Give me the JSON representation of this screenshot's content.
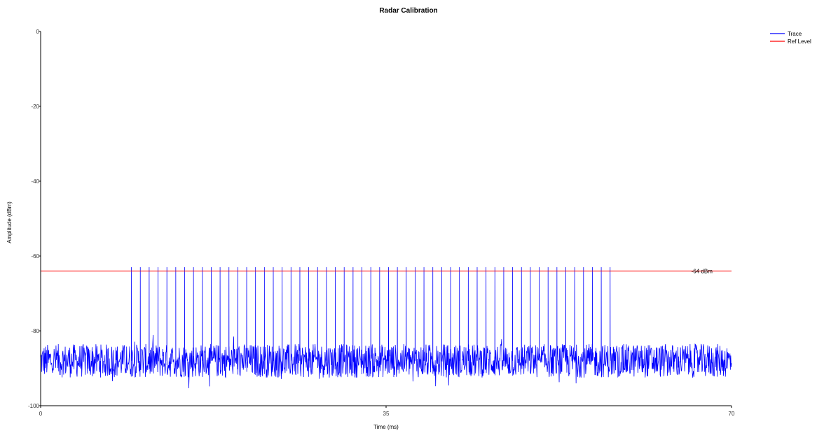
{
  "chart_data": {
    "type": "line",
    "title": "Radar Calibration",
    "xlabel": "Time (ms)",
    "ylabel": "Amplitude (dBm)",
    "xlim": [
      0,
      70
    ],
    "ylim": [
      -100,
      0
    ],
    "x_ticks": [
      "0",
      "35",
      "70"
    ],
    "y_ticks": [
      "0",
      "-20",
      "-40",
      "-60",
      "-80",
      "-100"
    ],
    "grid": false,
    "legend_position": "top-right",
    "series": [
      {
        "name": "Trace",
        "color": "#0000ff",
        "noise_floor_mean": -88,
        "noise_floor_range": [
          -93,
          -83
        ],
        "pulse_peak": -63,
        "pulse_start": 9.2,
        "pulse_end": 57.7,
        "pulse_count": 55
      },
      {
        "name": "Ref Level",
        "color": "#ff0000",
        "value": -64
      }
    ],
    "annotations": [
      {
        "text": "-64 dBm",
        "x": 67,
        "y": -64
      }
    ]
  }
}
